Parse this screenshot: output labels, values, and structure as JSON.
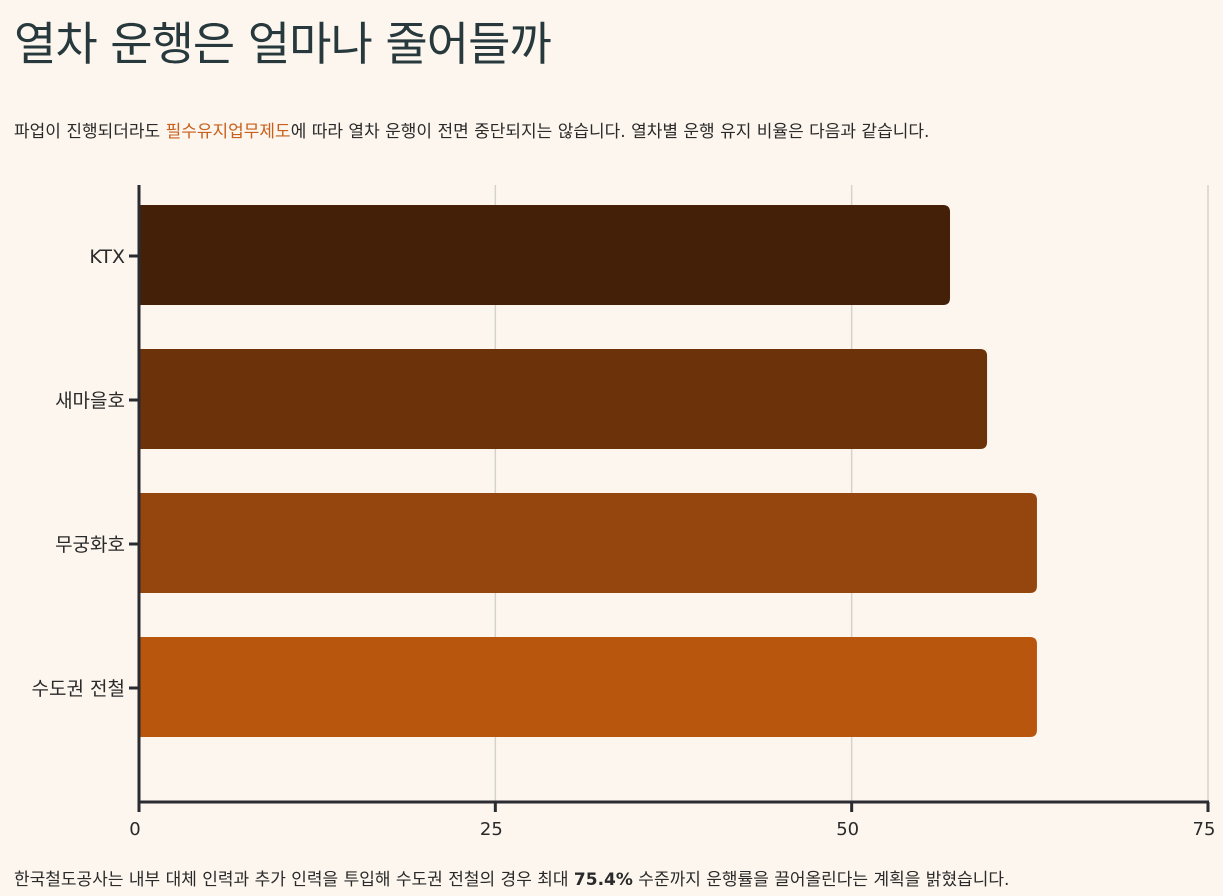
{
  "title": "열차 운행은 얼마나 줄어들까",
  "subtitle": {
    "before": "파업이 진행되더라도 ",
    "highlight": "필수유지업무제도",
    "after": "에 따라 열차 운행이 전면 중단되지는 않습니다. 열차별 운행 유지 비율은 다음과 같습니다."
  },
  "footnote": {
    "before": "한국철도공사는 내부 대체 인력과 추가 인력을 투입해 수도권 전철의 경우 최대 ",
    "bold": "75.4%",
    "after": " 수준까지 운행률을 끌어올린다는 계획을 밝혔습니다."
  },
  "chart_data": {
    "type": "bar",
    "orientation": "horizontal",
    "categories": [
      "KTX",
      "새마을호",
      "무궁화호",
      "수도권 전철"
    ],
    "values": [
      56.9,
      59.5,
      63.0,
      63.0
    ],
    "colors": [
      "#432007",
      "#6c3209",
      "#95450e",
      "#b9560e"
    ],
    "xlim": [
      0,
      75
    ],
    "xticks": [
      0,
      25,
      50,
      75
    ],
    "xtick_labels": [
      "0",
      "25",
      "50",
      "75"
    ],
    "grid": true
  }
}
